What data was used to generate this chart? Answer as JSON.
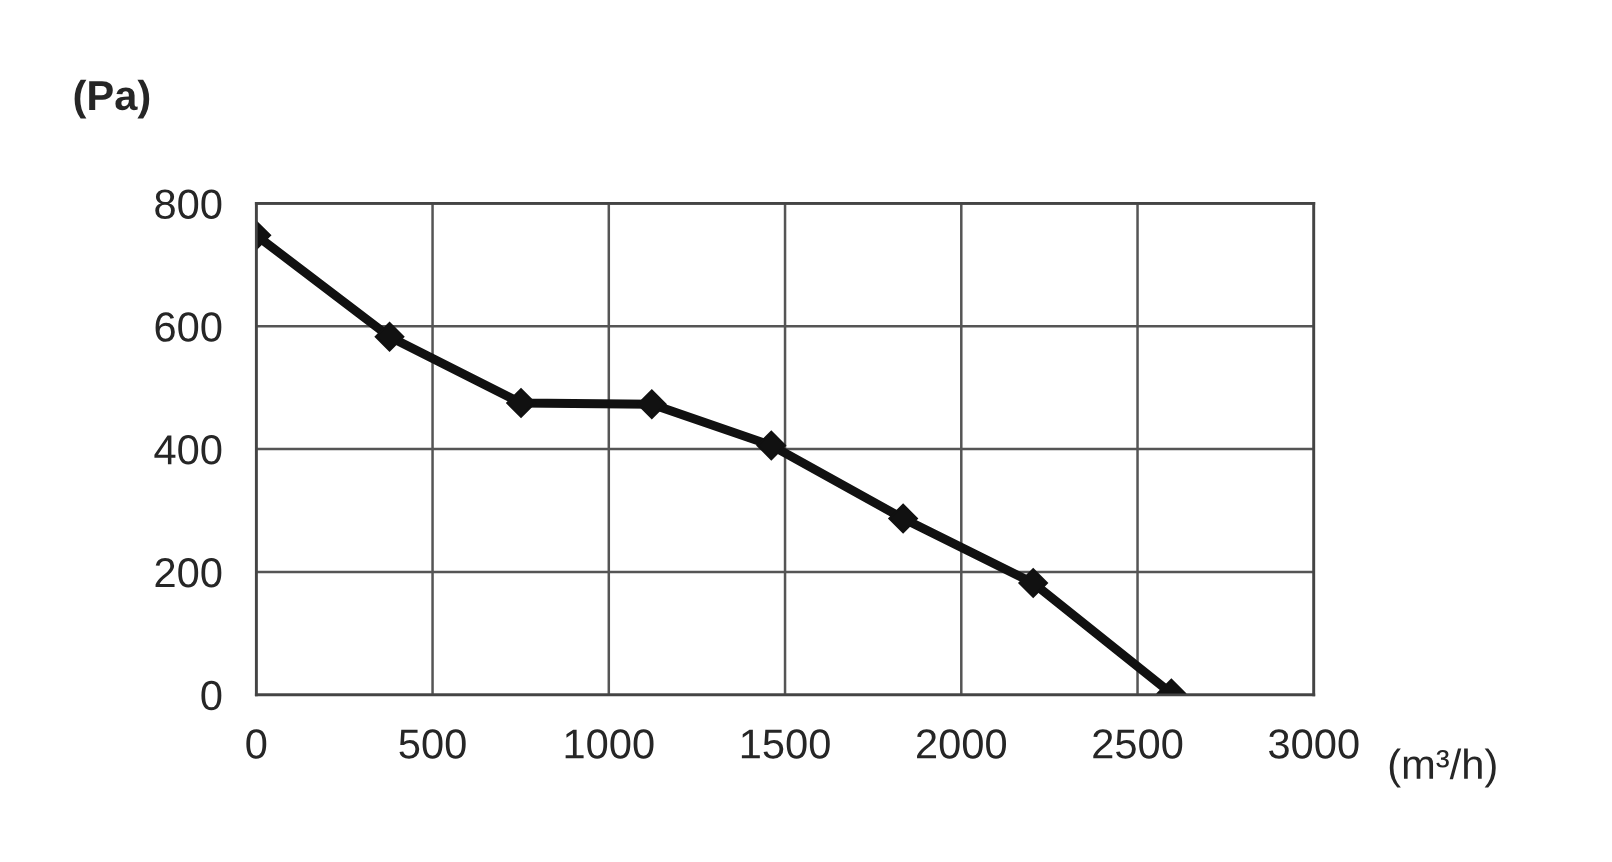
{
  "chart_data": {
    "type": "line",
    "xlabel": "(m³/h)",
    "ylabel": "(Pa)",
    "x": [
      0,
      378,
      751,
      1122,
      1461,
      1835,
      2204,
      2596
    ],
    "series": [
      {
        "color": "#111111",
        "values": [
          748,
          583,
          475,
          473,
          406,
          287,
          182,
          2
        ]
      }
    ],
    "xlim": [
      0,
      3000
    ],
    "xticks": [
      0,
      500,
      1000,
      1500,
      2000,
      2500,
      3000
    ],
    "ylim": [
      0,
      800
    ],
    "yticks": [
      0,
      200,
      400,
      600,
      800
    ],
    "grid": true,
    "marker": "diamond",
    "line_style": "solid"
  }
}
